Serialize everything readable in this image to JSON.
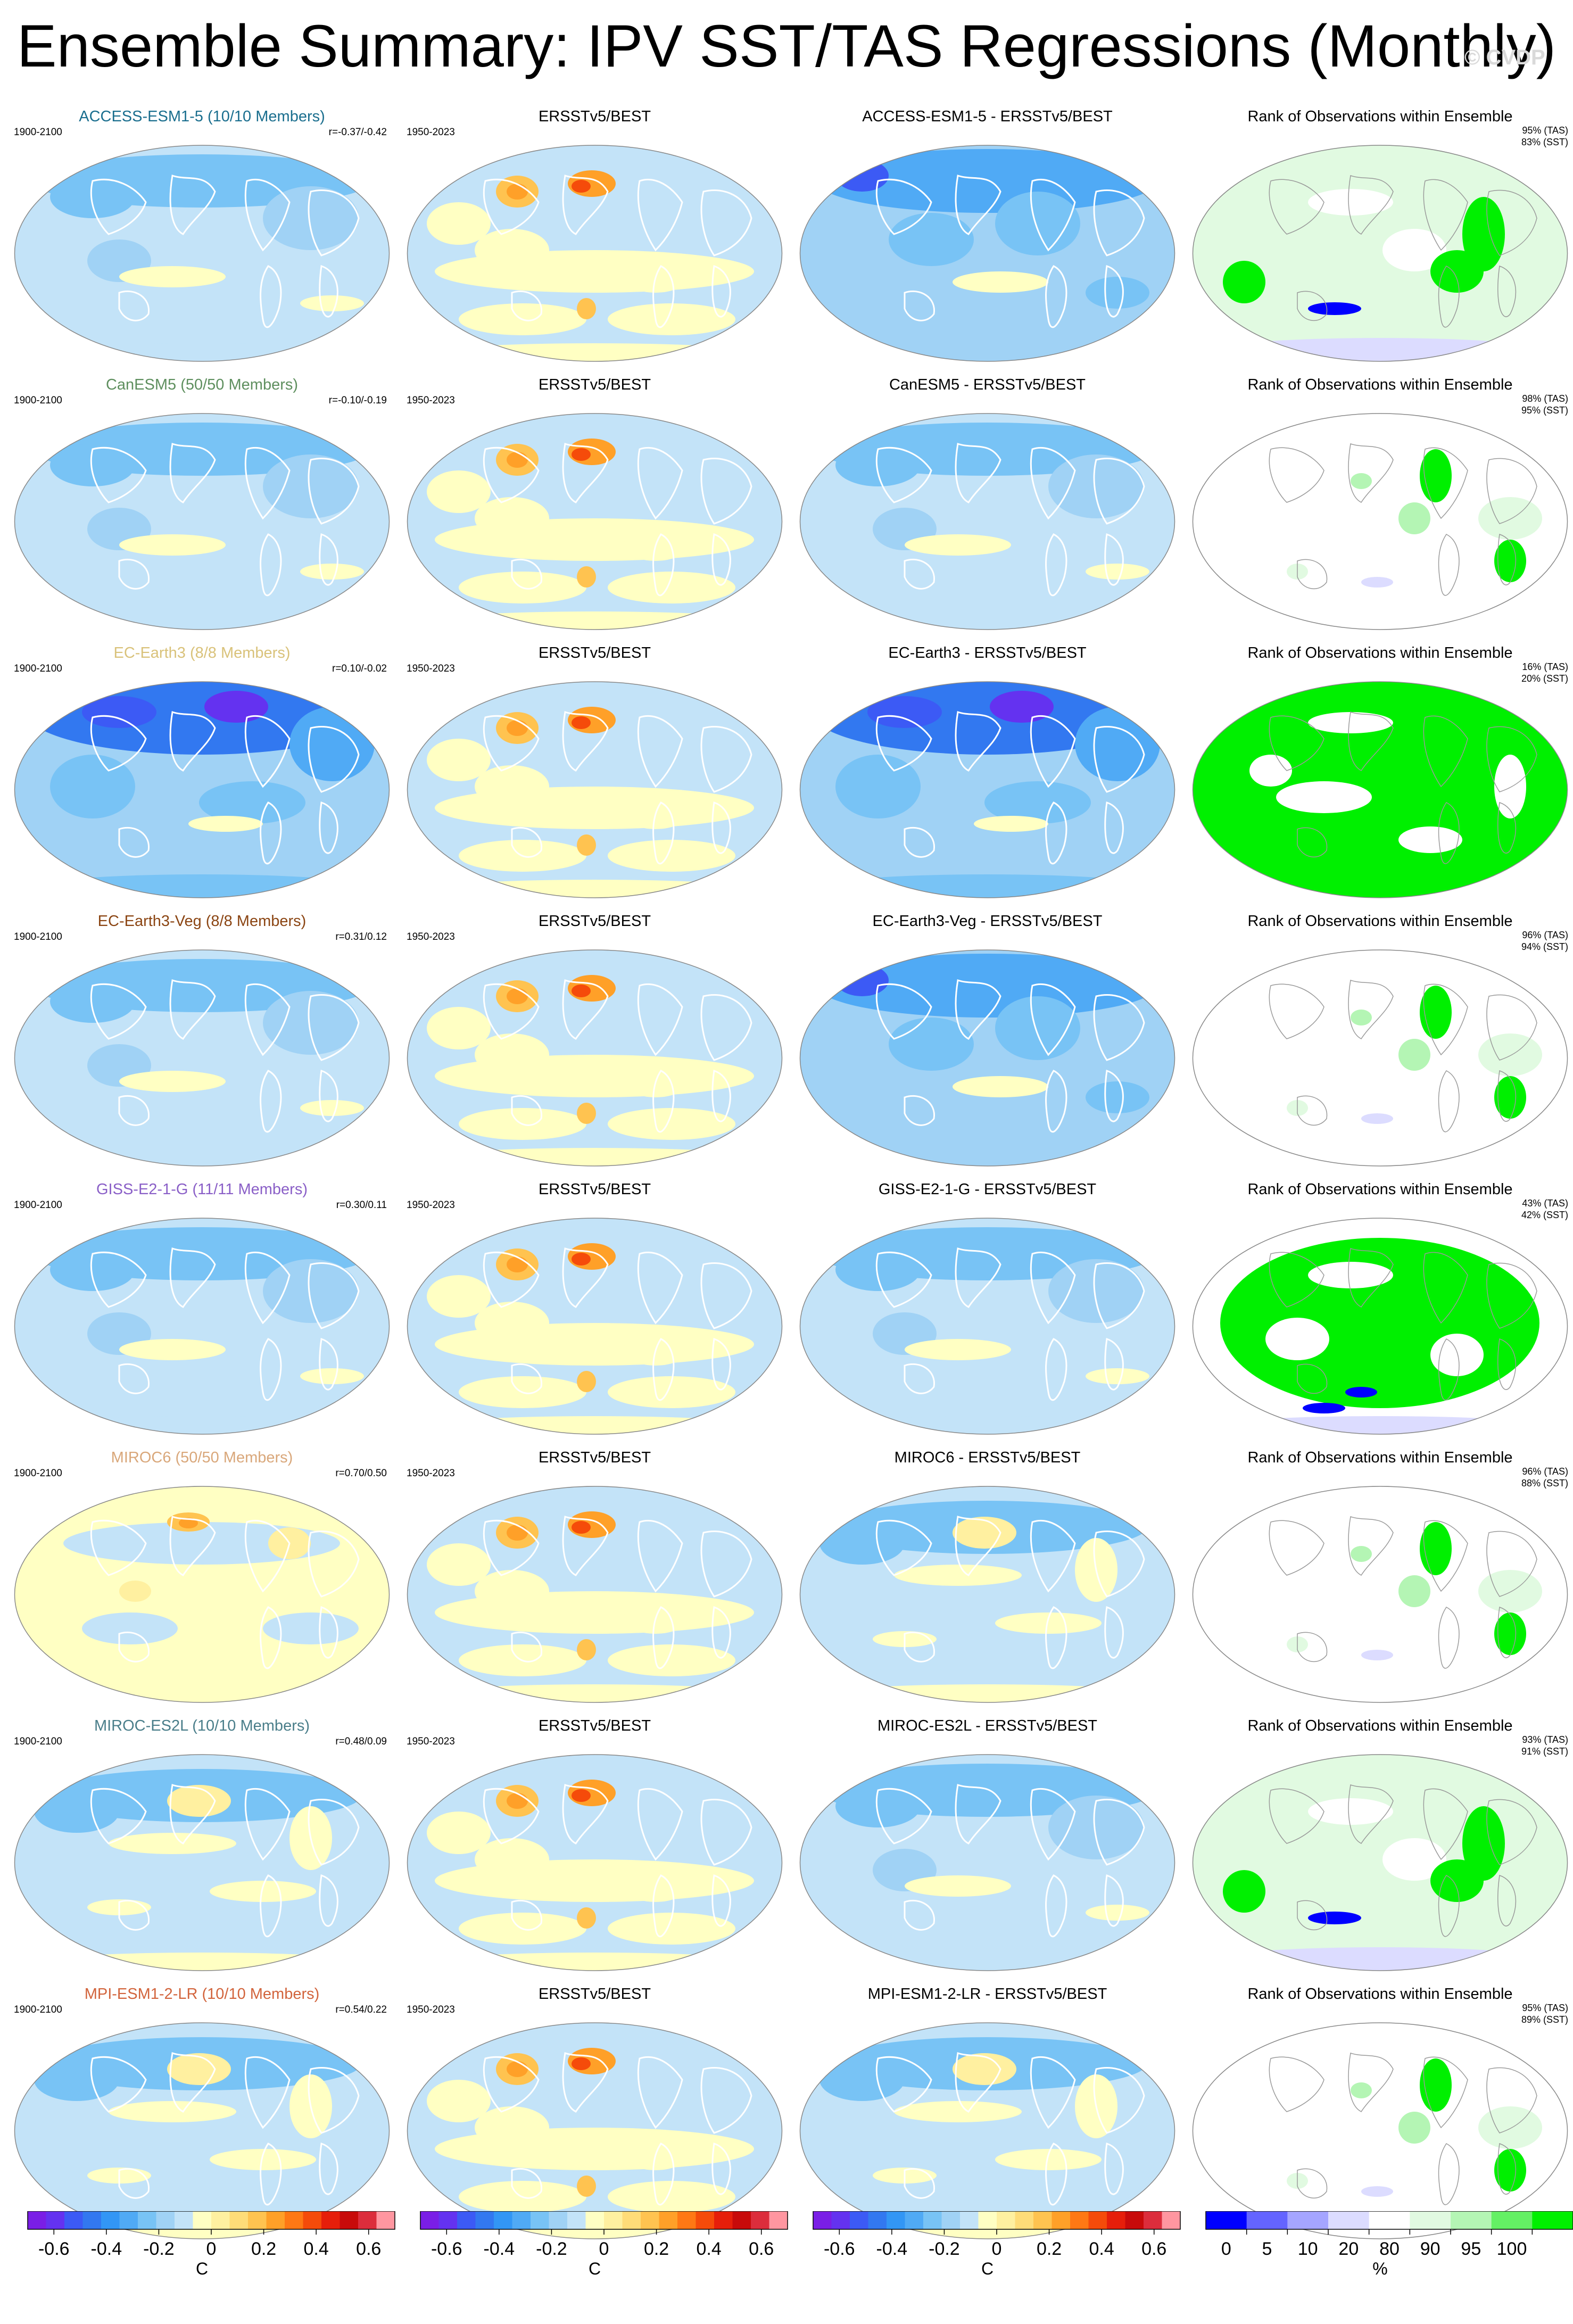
{
  "title": "Ensemble Summary: IPV SST/TAS Regressions (Monthly)",
  "watermark": "© CVDP",
  "obs_title": "ERSSTv5/BEST",
  "rank_title": "Rank of Observations within Ensemble",
  "model_period": "1900-2100",
  "obs_period": "1950-2023",
  "rows": [
    {
      "model": "ACCESS-ESM1-5 (10/10 Members)",
      "color": "#1a6e8e",
      "corr": "r=-0.37/-0.42",
      "diff_title": "ACCESS-ESM1-5 - ERSSTv5/BEST",
      "tas_rank": "95% (TAS)",
      "sst_rank": "83% (SST)",
      "model_regime": "cool",
      "diff_regime": "cooler",
      "rank_regime": "green_mid"
    },
    {
      "model": "CanESM5 (50/50 Members)",
      "color": "#5e8f5e",
      "corr": "r=-0.10/-0.19",
      "diff_title": "CanESM5 - ERSSTv5/BEST",
      "tas_rank": "98% (TAS)",
      "sst_rank": "95% (SST)",
      "model_regime": "cool",
      "diff_regime": "cool",
      "rank_regime": "green_low"
    },
    {
      "model": "EC-Earth3 (8/8 Members)",
      "color": "#d9c27a",
      "corr": "r=0.10/-0.02",
      "diff_title": "EC-Earth3 - ERSSTv5/BEST",
      "tas_rank": "16% (TAS)",
      "sst_rank": "20% (SST)",
      "model_regime": "coolest",
      "diff_regime": "coolest",
      "rank_regime": "green_full"
    },
    {
      "model": "EC-Earth3-Veg (8/8 Members)",
      "color": "#8b4513",
      "corr": "r=0.31/0.12",
      "diff_title": "EC-Earth3-Veg - ERSSTv5/BEST",
      "tas_rank": "96% (TAS)",
      "sst_rank": "94% (SST)",
      "model_regime": "cool",
      "diff_regime": "cooler",
      "rank_regime": "green_low"
    },
    {
      "model": "GISS-E2-1-G (11/11 Members)",
      "color": "#8a5fc7",
      "corr": "r=0.30/0.11",
      "diff_title": "GISS-E2-1-G - ERSSTv5/BEST",
      "tas_rank": "43% (TAS)",
      "sst_rank": "42% (SST)",
      "model_regime": "cool",
      "diff_regime": "cool",
      "rank_regime": "green_high"
    },
    {
      "model": "MIROC6 (50/50 Members)",
      "color": "#d9a77a",
      "corr": "r=0.70/0.50",
      "diff_title": "MIROC6 - ERSSTv5/BEST",
      "tas_rank": "96% (TAS)",
      "sst_rank": "88% (SST)",
      "model_regime": "warm",
      "diff_regime": "mixed",
      "rank_regime": "green_low"
    },
    {
      "model": "MIROC-ES2L (10/10 Members)",
      "color": "#4a7e8a",
      "corr": "r=0.48/0.09",
      "diff_title": "MIROC-ES2L - ERSSTv5/BEST",
      "tas_rank": "93% (TAS)",
      "sst_rank": "91% (SST)",
      "model_regime": "mixed",
      "diff_regime": "cool",
      "rank_regime": "green_mid"
    },
    {
      "model": "MPI-ESM1-2-LR (10/10 Members)",
      "color": "#d2643c",
      "corr": "r=0.54/0.22",
      "diff_title": "MPI-ESM1-2-LR - ERSSTv5/BEST",
      "tas_rank": "95% (TAS)",
      "sst_rank": "89% (SST)",
      "model_regime": "mixed",
      "diff_regime": "mixed",
      "rank_regime": "green_low"
    }
  ],
  "chart_data": {
    "type": "heatmap",
    "projection": "global ellipse map (Robinson-like), 8 rows x 4 columns",
    "columns": [
      "model ensemble regression",
      "ERSSTv5/BEST",
      "model - ERSSTv5/BEST",
      "Rank of Observations within Ensemble"
    ],
    "regression_colorbar": {
      "ticks": [
        "-0.6",
        "-0.4",
        "-0.2",
        "0",
        "0.2",
        "0.4",
        "0.6"
      ],
      "range": [
        -0.7,
        0.7
      ],
      "unit": "C",
      "colors": [
        "#7a1ee6",
        "#6432f0",
        "#3c5af5",
        "#3278f0",
        "#3296f5",
        "#50aaf5",
        "#78c3f5",
        "#a0d2f5",
        "#c3e3f8",
        "#ffffc3",
        "#fff0a0",
        "#ffdc78",
        "#ffc350",
        "#ffa028",
        "#ff7814",
        "#f54b0a",
        "#e61e0a",
        "#c80a0a",
        "#dc2d3c",
        "#ff96a0"
      ]
    },
    "rank_colorbar": {
      "ticks": [
        "0",
        "5",
        "10",
        "20",
        "80",
        "90",
        "95",
        "100"
      ],
      "unit": "%",
      "colors": [
        "#0000ff",
        "#6464ff",
        "#a5a5ff",
        "#dcdcff",
        "#ffffff",
        "#e1fae1",
        "#b4f5b4",
        "#64f064",
        "#00f000"
      ]
    }
  }
}
